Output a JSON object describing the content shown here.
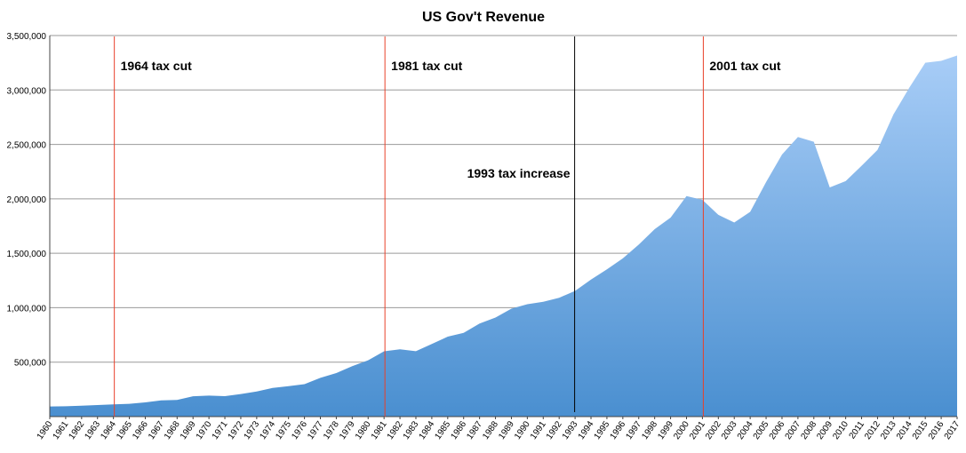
{
  "chart_data": {
    "type": "area",
    "title": "US Gov't Revenue",
    "xlabel": "",
    "ylabel": "",
    "ylim": [
      0,
      3500000
    ],
    "yticks": [
      500000,
      1000000,
      1500000,
      2000000,
      2500000,
      3000000,
      3500000
    ],
    "ytick_labels": [
      "500,000",
      "1,000,000",
      "1,500,000",
      "2,000,000",
      "2,500,000",
      "3,000,000",
      "3,500,000"
    ],
    "grid": true,
    "x": [
      "1960",
      "1961",
      "1962",
      "1963",
      "1964",
      "1965",
      "1966",
      "1967",
      "1968",
      "1969",
      "1970",
      "1971",
      "1972",
      "1973",
      "1974",
      "1975",
      "1976",
      "1977",
      "1978",
      "1979",
      "1980",
      "1981",
      "1982",
      "1983",
      "1984",
      "1985",
      "1986",
      "1987",
      "1988",
      "1989",
      "1990",
      "1991",
      "1992",
      "1993",
      "1994",
      "1995",
      "1996",
      "1997",
      "1998",
      "1999",
      "2000",
      "2001",
      "2002",
      "2003",
      "2004",
      "2005",
      "2006",
      "2007",
      "2008",
      "2009",
      "2010",
      "2011",
      "2012",
      "2013",
      "2014",
      "2015",
      "2016",
      "2017"
    ],
    "series": [
      {
        "values": [
          92492,
          94388,
          99676,
          106560,
          112613,
          116817,
          130835,
          148822,
          152973,
          186882,
          192807,
          187139,
          207309,
          230799,
          263224,
          279090,
          298060,
          355559,
          399561,
          463302,
          517112,
          599272,
          617766,
          600562,
          666438,
          734037,
          769155,
          854287,
          909238,
          991104,
          1031958,
          1054988,
          1091208,
          1154335,
          1258566,
          1351790,
          1453053,
          1579232,
          1721728,
          1827452,
          2025191,
          1991082,
          1853136,
          1782314,
          1880114,
          2153611,
          2406869,
          2567985,
          2523991,
          2104989,
          2162706,
          2303466,
          2449990,
          2775106,
          3021487,
          3249886,
          3267965,
          3316182
        ]
      }
    ],
    "colors": {
      "fill_top": "#a8cdf7",
      "fill_bottom": "#4a8fd0",
      "marker_cut": "#e8402a",
      "marker_increase": "#000000"
    },
    "annotations": [
      {
        "year": "1964",
        "label": "1964 tax cut",
        "kind": "cut"
      },
      {
        "year": "1981",
        "label": "1981 tax cut",
        "kind": "cut"
      },
      {
        "year": "1993",
        "label": "1993 tax increase",
        "kind": "increase"
      },
      {
        "year": "2001",
        "label": "2001 tax cut",
        "kind": "cut"
      }
    ]
  }
}
